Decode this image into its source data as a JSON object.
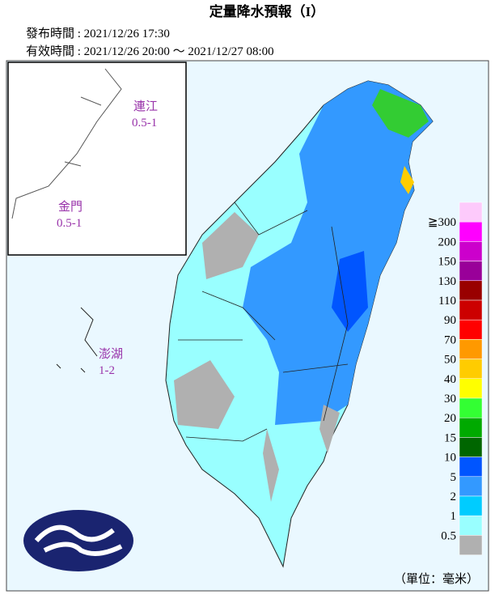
{
  "header": {
    "title": "定量降水預報（I）",
    "issued": "發布時間 : 2021/12/26 17:30",
    "valid": "有效時間 : 2021/12/26 20:00 ～ 2021/12/27 08:00"
  },
  "islands": [
    {
      "name": "連江",
      "range": "0.5-1"
    },
    {
      "name": "金門",
      "range": "0.5-1"
    },
    {
      "name": "澎湖",
      "range": "1-2"
    }
  ],
  "legend": {
    "colors": [
      "#fdcafb",
      "#ff00ff",
      "#cc00cc",
      "#990099",
      "#990000",
      "#cc0000",
      "#ff0000",
      "#ff9900",
      "#ffcc00",
      "#ffff00",
      "#33ff33",
      "#00aa00",
      "#006600",
      "#0055ff",
      "#3399ff",
      "#00ccff",
      "#99ffff",
      "#b0b0b0"
    ],
    "labels": [
      "≧300",
      "200",
      "150",
      "130",
      "110",
      "90",
      "70",
      "50",
      "40",
      "30",
      "20",
      "15",
      "10",
      "5",
      "2",
      "1",
      "0.5"
    ],
    "unit": "（單位：毫米）"
  }
}
